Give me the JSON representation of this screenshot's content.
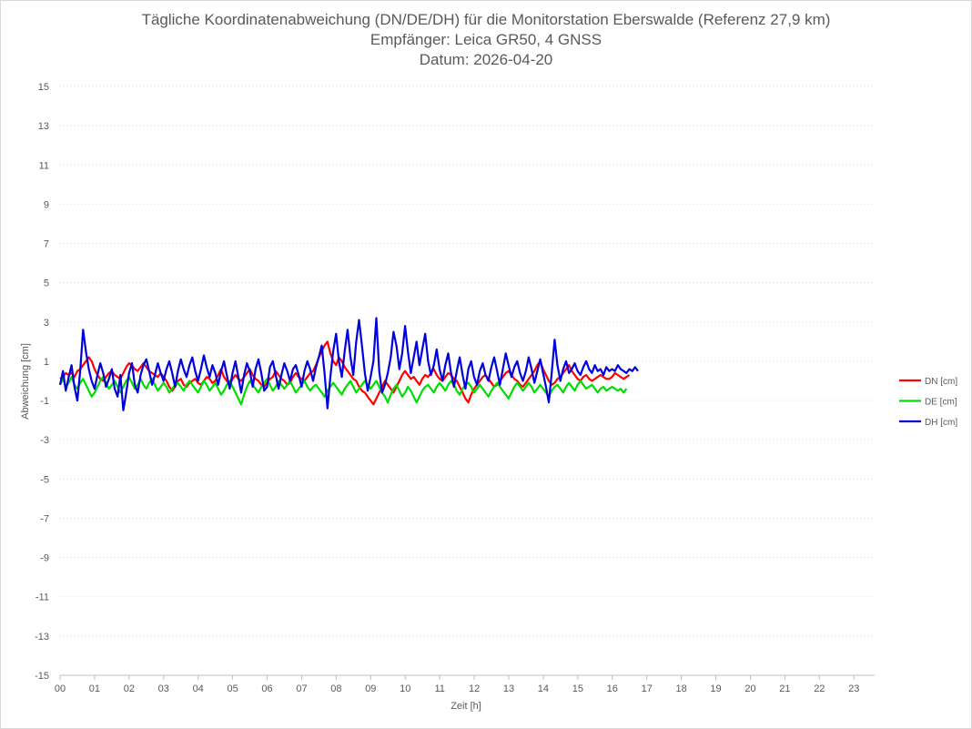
{
  "chart_data": {
    "type": "line",
    "title": "Tägliche Koordinatenabweichung (DN/DE/DH) für die Monitorstation Eberswalde (Referenz 27,9 km)",
    "subtitle": [
      "Empfänger: Leica GR50, 4 GNSS",
      "Datum: 2026-04-20"
    ],
    "xlabel": "Zeit [h]",
    "ylabel": "Abweichung [cm]",
    "xlim": [
      0,
      23.6
    ],
    "ylim": [
      -15,
      15
    ],
    "x_ticks": [
      "00",
      "01",
      "02",
      "03",
      "04",
      "05",
      "06",
      "07",
      "08",
      "09",
      "10",
      "11",
      "12",
      "13",
      "14",
      "15",
      "16",
      "17",
      "18",
      "19",
      "20",
      "21",
      "22",
      "23"
    ],
    "y_ticks": [
      15,
      13,
      11,
      9,
      7,
      5,
      3,
      1,
      -1,
      -3,
      -5,
      -7,
      -9,
      -11,
      -13,
      -15
    ],
    "grid": "horizontal-dotted",
    "legend_position": "right",
    "sample_interval_h": 0.0833,
    "series": [
      {
        "name": "DN [cm]",
        "color": "#ff0000",
        "values": [
          0.1,
          0.2,
          0.4,
          0.3,
          0.4,
          0.2,
          0.5,
          0.6,
          0.8,
          1.0,
          1.2,
          1.0,
          0.6,
          0.3,
          0.1,
          0.0,
          0.2,
          0.4,
          0.5,
          0.3,
          0.2,
          0.1,
          0.4,
          0.7,
          0.9,
          0.8,
          0.6,
          0.5,
          0.7,
          0.9,
          0.7,
          0.5,
          0.4,
          0.3,
          0.2,
          0.4,
          0.2,
          0.0,
          -0.3,
          -0.5,
          -0.3,
          0.0,
          0.1,
          -0.2,
          -0.3,
          -0.1,
          0.0,
          0.1,
          -0.1,
          -0.2,
          0.0,
          0.2,
          0.1,
          -0.1,
          0.0,
          0.3,
          0.6,
          0.2,
          0.0,
          -0.2,
          0.1,
          0.3,
          0.1,
          0.0,
          0.2,
          0.4,
          0.6,
          0.3,
          0.1,
          0.0,
          -0.2,
          -0.3,
          -0.1,
          0.1,
          0.2,
          0.5,
          0.3,
          0.1,
          0.0,
          -0.2,
          -0.1,
          0.2,
          0.4,
          0.2,
          0.1,
          0.0,
          0.2,
          0.4,
          0.5,
          0.8,
          1.2,
          1.5,
          1.8,
          2.0,
          1.4,
          1.0,
          0.8,
          1.2,
          1.0,
          0.7,
          0.5,
          0.3,
          0.1,
          0.0,
          -0.3,
          -0.5,
          -0.6,
          -0.8,
          -1.0,
          -1.2,
          -0.9,
          -0.6,
          -0.3,
          0.0,
          -0.2,
          -0.4,
          -0.6,
          -0.3,
          0.0,
          0.3,
          0.5,
          0.3,
          0.1,
          0.2,
          0.0,
          -0.2,
          0.1,
          0.3,
          0.2,
          0.4,
          0.6,
          0.3,
          0.1,
          0.0,
          0.2,
          0.4,
          0.3,
          0.1,
          0.0,
          -0.3,
          -0.6,
          -0.9,
          -1.1,
          -0.7,
          -0.4,
          -0.2,
          0.0,
          0.2,
          0.3,
          0.1,
          -0.1,
          -0.3,
          -0.2,
          0.0,
          0.2,
          0.4,
          0.5,
          0.3,
          0.1,
          0.0,
          -0.2,
          -0.3,
          -0.1,
          0.1,
          0.3,
          0.5,
          0.8,
          1.0,
          0.6,
          0.3,
          0.0,
          -0.2,
          -0.1,
          0.1,
          0.2,
          0.4,
          0.6,
          0.8,
          0.5,
          0.3,
          0.1,
          0.0,
          0.2,
          0.3,
          0.1,
          0.0,
          0.1,
          0.2,
          0.3,
          0.2,
          0.1,
          0.1,
          0.2,
          0.4,
          0.3,
          0.2,
          0.1,
          0.2,
          0.3
        ]
      },
      {
        "name": "DE [cm]",
        "color": "#00dd00",
        "values": [
          -0.2,
          0.1,
          -0.3,
          -0.1,
          0.2,
          -0.2,
          -0.4,
          -0.1,
          0.1,
          -0.2,
          -0.5,
          -0.8,
          -0.6,
          -0.3,
          0.0,
          0.2,
          -0.1,
          -0.4,
          -0.2,
          0.0,
          -0.3,
          -0.6,
          -0.3,
          0.0,
          0.2,
          -0.1,
          -0.4,
          -0.2,
          0.1,
          -0.2,
          -0.4,
          -0.1,
          0.1,
          -0.2,
          -0.5,
          -0.3,
          -0.1,
          -0.3,
          -0.6,
          -0.4,
          -0.2,
          -0.1,
          -0.3,
          -0.5,
          -0.2,
          0.0,
          -0.2,
          -0.4,
          -0.6,
          -0.3,
          0.0,
          -0.2,
          -0.5,
          -0.3,
          -0.1,
          -0.4,
          -0.7,
          -0.5,
          -0.2,
          0.0,
          -0.3,
          -0.6,
          -0.9,
          -1.2,
          -0.7,
          -0.3,
          0.0,
          -0.2,
          -0.4,
          -0.6,
          -0.3,
          -0.1,
          0.1,
          -0.2,
          -0.5,
          -0.3,
          0.0,
          -0.2,
          -0.4,
          -0.2,
          0.0,
          -0.3,
          -0.6,
          -0.4,
          -0.2,
          0.0,
          -0.3,
          -0.5,
          -0.3,
          -0.2,
          -0.4,
          -0.6,
          -0.8,
          -0.5,
          -0.3,
          -0.1,
          -0.3,
          -0.5,
          -0.7,
          -0.4,
          -0.2,
          0.0,
          -0.3,
          -0.6,
          -0.4,
          -0.2,
          0.0,
          -0.2,
          -0.4,
          -0.2,
          0.0,
          -0.3,
          -0.6,
          -0.8,
          -1.1,
          -0.7,
          -0.4,
          -0.2,
          -0.5,
          -0.8,
          -0.6,
          -0.3,
          -0.5,
          -0.8,
          -1.1,
          -0.8,
          -0.5,
          -0.3,
          -0.2,
          -0.4,
          -0.6,
          -0.3,
          -0.1,
          -0.3,
          -0.5,
          -0.2,
          0.0,
          -0.2,
          -0.5,
          -0.7,
          -0.4,
          -0.2,
          -0.1,
          -0.3,
          -0.6,
          -0.4,
          -0.2,
          -0.4,
          -0.6,
          -0.8,
          -0.5,
          -0.3,
          -0.1,
          -0.3,
          -0.5,
          -0.7,
          -0.9,
          -0.6,
          -0.3,
          -0.1,
          -0.3,
          -0.5,
          -0.3,
          -0.1,
          -0.3,
          -0.6,
          -0.4,
          -0.2,
          -0.4,
          -0.6,
          -0.8,
          -0.5,
          -0.3,
          -0.2,
          -0.4,
          -0.6,
          -0.3,
          -0.1,
          -0.3,
          -0.5,
          -0.2,
          0.0,
          -0.2,
          -0.4,
          -0.3,
          -0.2,
          -0.4,
          -0.6,
          -0.4,
          -0.3,
          -0.5,
          -0.4,
          -0.3,
          -0.4,
          -0.5,
          -0.4,
          -0.6,
          -0.4
        ]
      },
      {
        "name": "DH [cm]",
        "color": "#0000dd",
        "values": [
          -0.2,
          0.5,
          -0.5,
          0.2,
          0.8,
          -0.3,
          -1.0,
          0.5,
          2.6,
          1.5,
          0.6,
          0.0,
          -0.4,
          0.3,
          0.9,
          0.4,
          -0.3,
          0.1,
          0.6,
          -0.4,
          -0.8,
          0.3,
          -1.5,
          -0.6,
          0.4,
          0.9,
          -0.2,
          -0.6,
          0.3,
          0.8,
          1.1,
          0.5,
          -0.2,
          0.3,
          0.9,
          0.4,
          0.0,
          0.6,
          1.0,
          0.4,
          -0.3,
          0.5,
          1.1,
          0.6,
          0.2,
          0.8,
          1.2,
          0.5,
          0.0,
          0.6,
          1.3,
          0.7,
          0.2,
          0.8,
          0.4,
          -0.2,
          0.5,
          1.0,
          0.3,
          -0.4,
          0.4,
          1.0,
          0.2,
          -0.6,
          0.3,
          0.9,
          0.5,
          -0.3,
          0.6,
          1.1,
          0.4,
          -0.5,
          -0.3,
          0.7,
          1.0,
          0.3,
          -0.4,
          0.3,
          0.9,
          0.5,
          0.0,
          0.6,
          0.8,
          0.3,
          -0.3,
          0.5,
          1.0,
          0.6,
          0.0,
          0.7,
          1.2,
          1.8,
          0.4,
          -1.4,
          0.2,
          1.5,
          2.4,
          1.0,
          0.2,
          1.5,
          2.6,
          1.2,
          0.3,
          2.0,
          3.1,
          1.8,
          0.4,
          -0.5,
          0.2,
          1.0,
          3.2,
          0.5,
          -0.6,
          -0.2,
          0.4,
          1.2,
          2.5,
          1.8,
          0.6,
          1.4,
          2.8,
          1.5,
          0.4,
          1.2,
          2.0,
          0.8,
          1.6,
          2.4,
          1.0,
          0.3,
          0.8,
          1.6,
          0.6,
          0.0,
          0.8,
          1.4,
          0.4,
          -0.3,
          0.5,
          1.2,
          0.3,
          -0.4,
          0.6,
          1.0,
          0.2,
          -0.2,
          0.5,
          0.9,
          0.3,
          0.0,
          0.7,
          1.2,
          0.5,
          -0.2,
          0.6,
          1.4,
          0.8,
          0.2,
          0.7,
          1.0,
          0.4,
          0.0,
          0.5,
          1.2,
          0.6,
          -0.1,
          0.5,
          1.1,
          0.4,
          -0.3,
          -1.1,
          0.4,
          2.1,
          0.8,
          0.0,
          0.6,
          1.0,
          0.4,
          0.6,
          0.9,
          0.5,
          0.3,
          0.7,
          1.0,
          0.6,
          0.4,
          0.8,
          0.5,
          0.6,
          0.3,
          0.7,
          0.5,
          0.6,
          0.5,
          0.8,
          0.6,
          0.5,
          0.4,
          0.6,
          0.5,
          0.7,
          0.5
        ]
      }
    ]
  }
}
